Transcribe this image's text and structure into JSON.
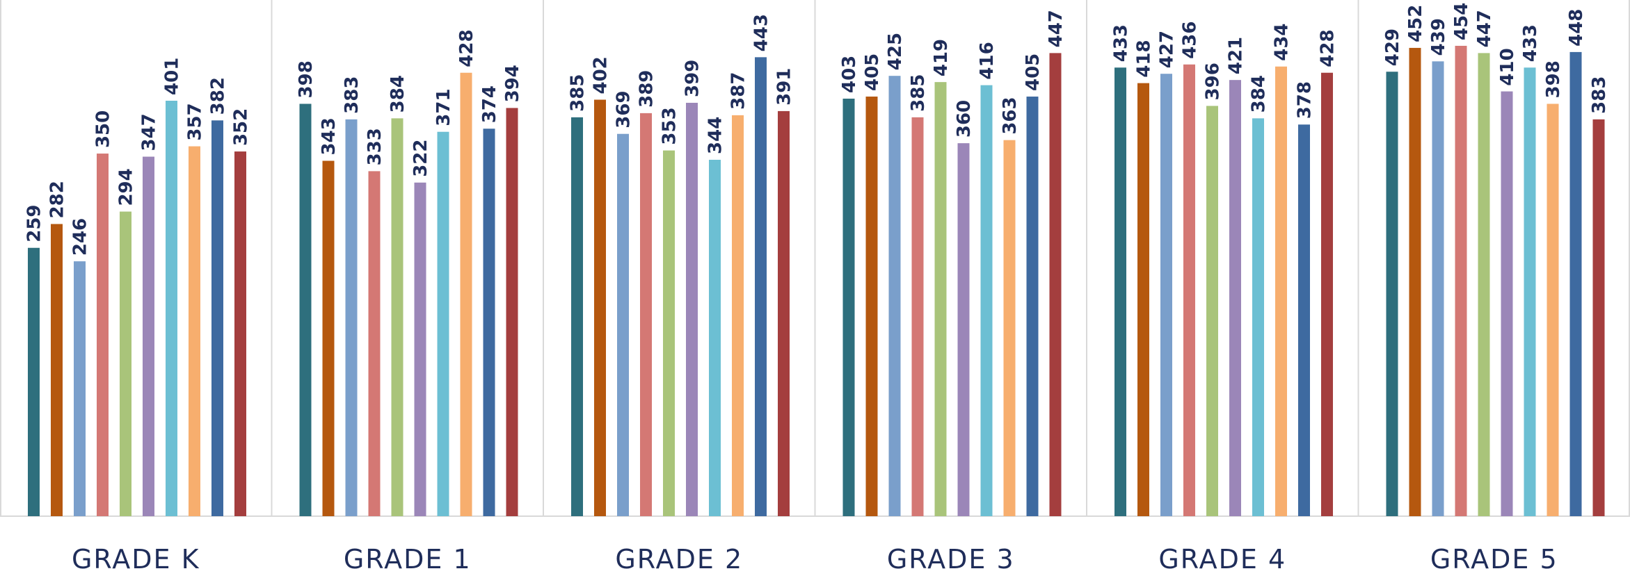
{
  "chart_data": {
    "type": "bar",
    "categories": [
      "GRADE K",
      "GRADE 1",
      "GRADE 2",
      "GRADE 3",
      "GRADE 4",
      "GRADE 5"
    ],
    "ylim": [
      0,
      460
    ],
    "grid": false,
    "legend": "none",
    "series": [
      {
        "color": "#2e6f7d",
        "values": [
          259,
          398,
          385,
          403,
          433,
          429
        ]
      },
      {
        "color": "#b5580f",
        "values": [
          282,
          343,
          402,
          405,
          418,
          452
        ]
      },
      {
        "color": "#7a9fcb",
        "values": [
          246,
          383,
          369,
          425,
          427,
          439
        ]
      },
      {
        "color": "#d47874",
        "values": [
          350,
          333,
          389,
          385,
          436,
          454
        ]
      },
      {
        "color": "#a9c47a",
        "values": [
          294,
          384,
          353,
          419,
          396,
          447
        ]
      },
      {
        "color": "#9b86b8",
        "values": [
          347,
          322,
          399,
          360,
          421,
          410
        ]
      },
      {
        "color": "#6cbfd3",
        "values": [
          401,
          371,
          344,
          416,
          384,
          433
        ]
      },
      {
        "color": "#f7ae6e",
        "values": [
          357,
          428,
          387,
          363,
          434,
          398
        ]
      },
      {
        "color": "#3e6aa0",
        "values": [
          382,
          374,
          443,
          405,
          378,
          448
        ]
      },
      {
        "color": "#a43e3e",
        "values": [
          352,
          394,
          391,
          447,
          428,
          383
        ]
      }
    ]
  }
}
